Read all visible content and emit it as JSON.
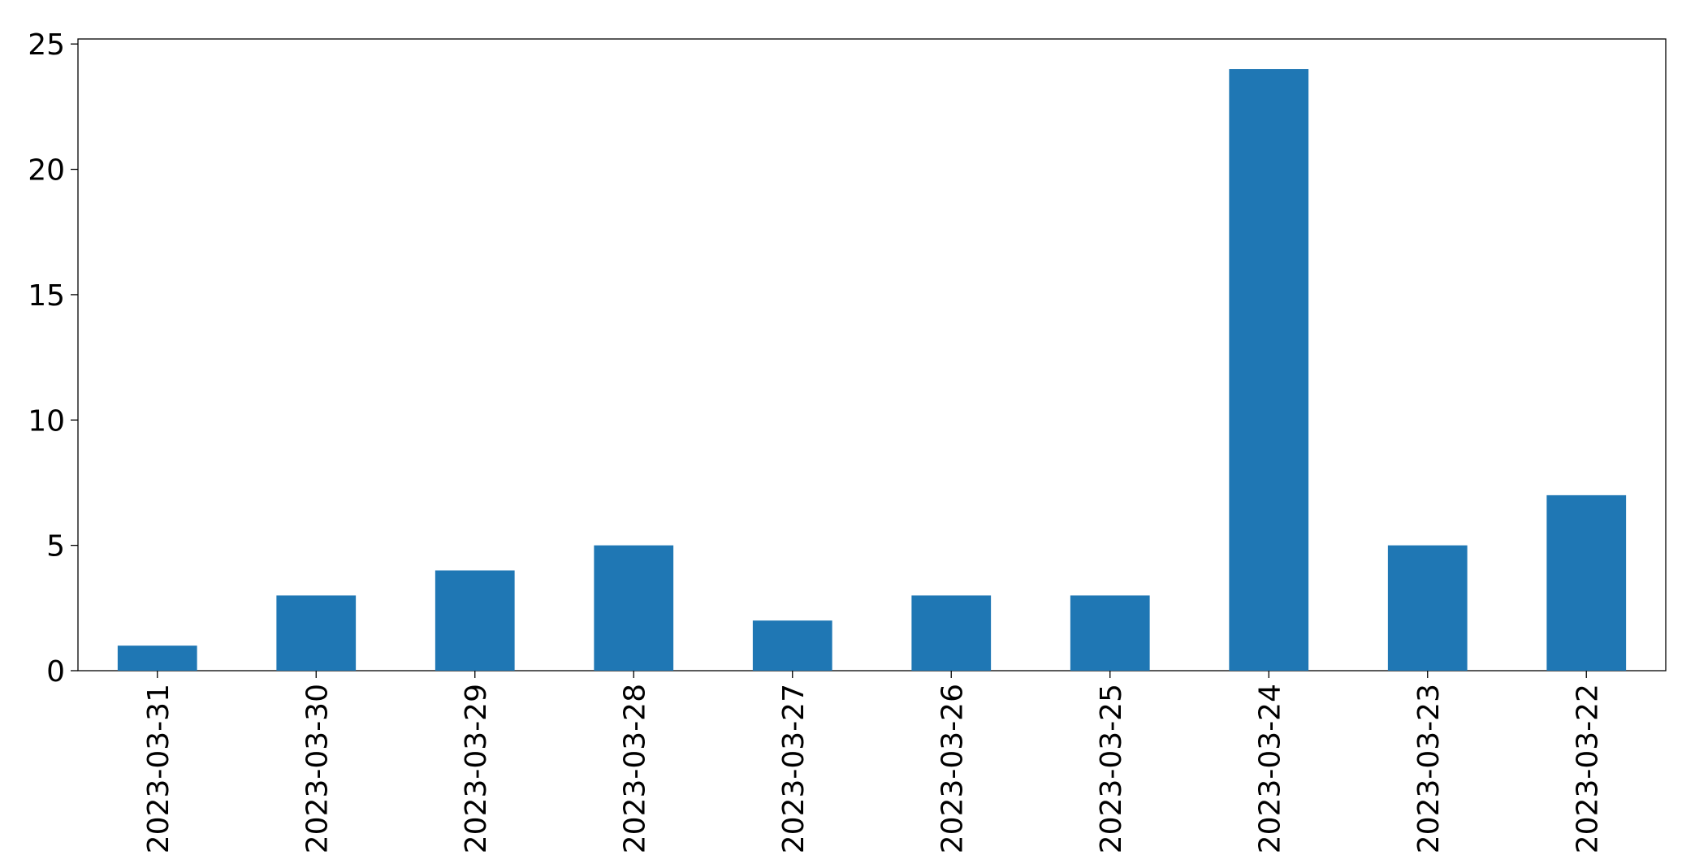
{
  "chart_data": {
    "type": "bar",
    "categories": [
      "2023-03-31",
      "2023-03-30",
      "2023-03-29",
      "2023-03-28",
      "2023-03-27",
      "2023-03-26",
      "2023-03-25",
      "2023-03-24",
      "2023-03-23",
      "2023-03-22"
    ],
    "values": [
      1,
      3,
      4,
      5,
      2,
      3,
      3,
      24,
      5,
      7
    ],
    "color": "#1f77b4",
    "ylim": [
      0,
      25.2
    ],
    "yticks": [
      0,
      5,
      10,
      15,
      20,
      25
    ],
    "grid": false
  }
}
